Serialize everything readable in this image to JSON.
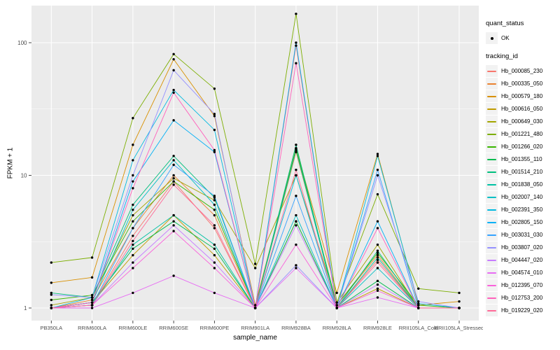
{
  "figure": {
    "panel_bg": "#EBEBEB",
    "grid_color": "#FFFFFF",
    "tick_color": "#333333",
    "tick_label_color": "#4D4D4D",
    "legend": {
      "quant_status_title": "quant_status",
      "quant_status_items": [
        {
          "label": "OK",
          "symbol": "black-point"
        }
      ],
      "tracking_title": "tracking_id"
    }
  },
  "chart_data": {
    "type": "line",
    "title": "",
    "xlabel": "sample_name",
    "ylabel": "FPKM + 1",
    "yscale": "log10",
    "ylim": [
      0.85,
      190
    ],
    "y_major": [
      1,
      10,
      100
    ],
    "y_major_labels": [
      "1",
      "10",
      "100"
    ],
    "y_minor": [
      3.162,
      31.623
    ],
    "grid": true,
    "legend_position": "right",
    "point_color": "#000000",
    "categories": [
      "PB350LA",
      "RRIM600LA",
      "RRIM600LE",
      "RRIM600SE",
      "RRIM600PE",
      "RRIM901LA",
      "RRIM928BA",
      "RRIM928LA",
      "RRIM928LE",
      "RRII105LA_Cold",
      "RRII105LA_Stressed"
    ],
    "quant_status": {
      "title": "quant_status",
      "items": [
        "OK"
      ]
    },
    "series": [
      {
        "name": "Hb_000085_230",
        "color": "#F8766D",
        "values": [
          1.0,
          1.05,
          3.5,
          9,
          4,
          1.0,
          95,
          1.0,
          2.3,
          1.0,
          1.0
        ]
      },
      {
        "name": "Hb_000335_050",
        "color": "#EA8331",
        "values": [
          1.0,
          1.15,
          4,
          10,
          5,
          1.0,
          15,
          1.05,
          2.5,
          1.0,
          1.0
        ]
      },
      {
        "name": "Hb_000579_180",
        "color": "#D89000",
        "values": [
          1.55,
          1.7,
          17,
          75,
          28,
          1.05,
          16,
          1.3,
          14.5,
          1.05,
          1.12
        ]
      },
      {
        "name": "Hb_000616_050",
        "color": "#C09B00",
        "values": [
          1.0,
          1.1,
          2.5,
          5,
          2.5,
          1.0,
          4.5,
          1.0,
          1.4,
          1.0,
          1.0
        ]
      },
      {
        "name": "Hb_000649_030",
        "color": "#A3A500",
        "values": [
          1.05,
          1.2,
          5,
          9.5,
          6.5,
          2.0,
          10,
          1.1,
          3,
          1.0,
          1.0
        ]
      },
      {
        "name": "Hb_001221_480",
        "color": "#7CAE00",
        "values": [
          2.2,
          2.4,
          27,
          82,
          45,
          2.15,
          165,
          1.1,
          7.2,
          1.4,
          1.3
        ]
      },
      {
        "name": "Hb_001266_020",
        "color": "#39B600",
        "values": [
          1.15,
          1.25,
          4.5,
          9,
          5.5,
          1.0,
          16,
          1.05,
          2.6,
          1.05,
          1.0
        ]
      },
      {
        "name": "Hb_001355_110",
        "color": "#00BB4E",
        "values": [
          1.0,
          1.1,
          2.8,
          4.5,
          2.8,
          1.0,
          4.5,
          1.0,
          1.6,
          1.0,
          1.0
        ]
      },
      {
        "name": "Hb_001514_210",
        "color": "#00BF7D",
        "values": [
          1.3,
          1.2,
          6,
          14,
          6.8,
          1.0,
          17,
          1.0,
          2.7,
          1.0,
          1.0
        ]
      },
      {
        "name": "Hb_001838_050",
        "color": "#00C1A3",
        "values": [
          1.0,
          1.05,
          3,
          5,
          3,
          1.0,
          15.5,
          1.0,
          2.4,
          1.0,
          1.0
        ]
      },
      {
        "name": "Hb_002007_140",
        "color": "#00BFC4",
        "values": [
          1.0,
          1.1,
          5.5,
          13,
          6,
          1.0,
          5,
          1.0,
          2.0,
          1.0,
          1.0
        ]
      },
      {
        "name": "Hb_002391_350",
        "color": "#00BAE0",
        "values": [
          1.0,
          1.2,
          13,
          44,
          22,
          1.0,
          10,
          1.0,
          14,
          1.08,
          1.0
        ]
      },
      {
        "name": "Hb_002805_150",
        "color": "#00B0F6",
        "values": [
          1.0,
          1.1,
          9,
          26,
          15,
          1.0,
          100,
          1.0,
          4.5,
          1.0,
          1.0
        ]
      },
      {
        "name": "Hb_003031_030",
        "color": "#35A2FF",
        "values": [
          1.0,
          1.05,
          4,
          12,
          7,
          1.0,
          7,
          1.0,
          11,
          1.0,
          1.0
        ]
      },
      {
        "name": "Hb_003807_020",
        "color": "#9590FF",
        "values": [
          1.26,
          1.2,
          10,
          62,
          29,
          1.0,
          2.1,
          1.0,
          10,
          1.12,
          1.0
        ]
      },
      {
        "name": "Hb_004447_020",
        "color": "#C77CFF",
        "values": [
          1.0,
          1.05,
          2.2,
          4.2,
          2.2,
          1.0,
          4.2,
          1.0,
          1.5,
          1.0,
          1.0
        ]
      },
      {
        "name": "Hb_004574_010",
        "color": "#E76BF3",
        "values": [
          1.0,
          1.0,
          1.3,
          1.75,
          1.3,
          1.0,
          2.0,
          1.0,
          1.2,
          1.0,
          1.0
        ]
      },
      {
        "name": "Hb_012395_070",
        "color": "#FA62DB",
        "values": [
          1.0,
          1.05,
          2.0,
          3.8,
          2.0,
          1.0,
          3.0,
          1.0,
          1.35,
          1.0,
          1.0
        ]
      },
      {
        "name": "Hb_012753_200",
        "color": "#FF62BC",
        "values": [
          1.0,
          1.1,
          8,
          42,
          15.5,
          1.0,
          70,
          1.0,
          4.0,
          1.0,
          1.0
        ]
      },
      {
        "name": "Hb_019229_020",
        "color": "#FF6A98",
        "values": [
          1.0,
          1.05,
          3.2,
          8.5,
          4.2,
          1.0,
          11,
          1.0,
          2.2,
          1.0,
          1.0
        ]
      }
    ]
  }
}
